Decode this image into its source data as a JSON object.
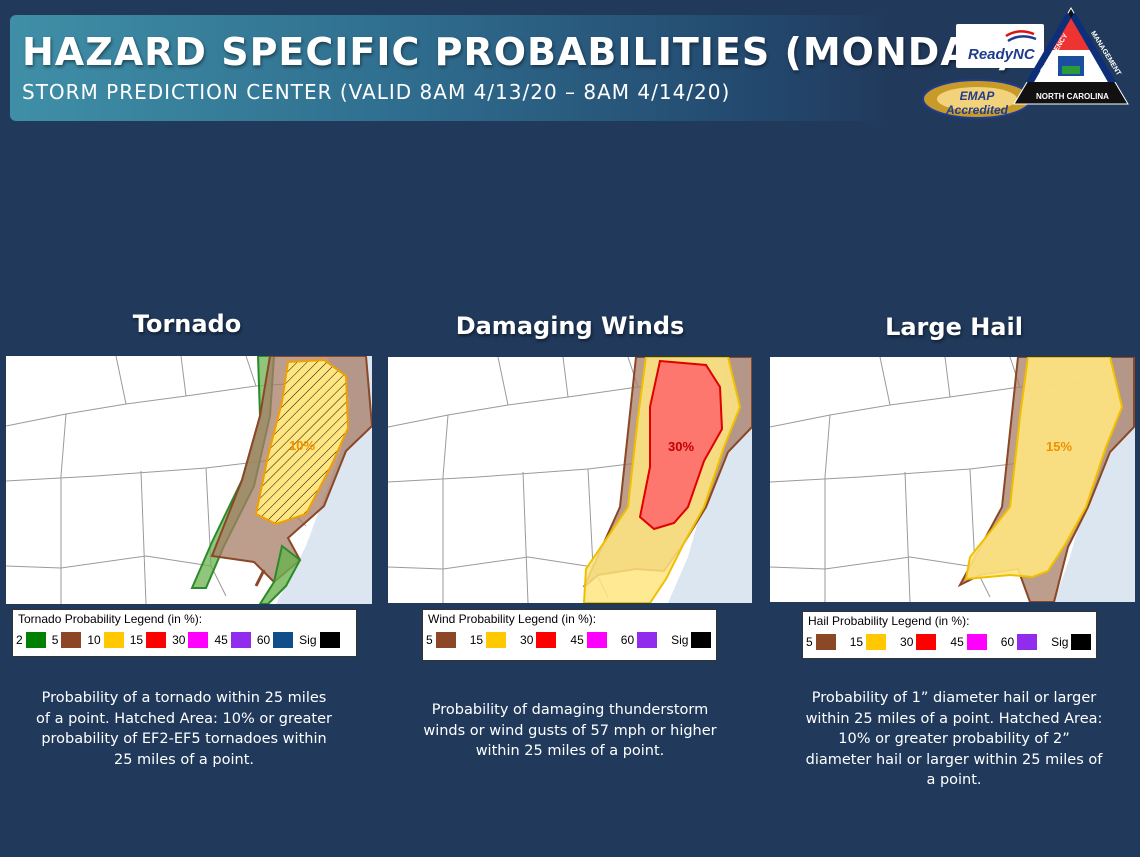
{
  "header": {
    "title": "HAZARD SPECIFIC PROBABILITIES (MONDAY)",
    "subtitle": "STORM PREDICTION CENTER (VALID 8AM 4/13/20 – 8AM 4/14/20)"
  },
  "logos": {
    "ready": "ReadyNC",
    "emap": "EMAP Accredited",
    "ncem_emergency": "EMERGENCY",
    "ncem_management": "MANAGEMENT",
    "ncem_state": "NORTH CAROLINA"
  },
  "panels": [
    {
      "title": "Tornado",
      "prob_label": "10%",
      "legend": {
        "title": "Tornado Probability Legend (in %):",
        "items": [
          {
            "label": "2",
            "color": "#008000"
          },
          {
            "label": "5",
            "color": "#8b4726"
          },
          {
            "label": "10",
            "color": "#ffc800"
          },
          {
            "label": "15",
            "color": "#ff0000"
          },
          {
            "label": "30",
            "color": "#ff00ff"
          },
          {
            "label": "45",
            "color": "#912cee"
          },
          {
            "label": "60",
            "color": "#104e8b"
          },
          {
            "label": "Sig",
            "color": "#000000"
          }
        ]
      },
      "description": "Probability of a tornado within 25 miles of a point. Hatched Area: 10% or greater probability of EF2-EF5 tornadoes within 25 miles of a point."
    },
    {
      "title": "Damaging Winds",
      "prob_label": "30%",
      "legend": {
        "title": "Wind Probability Legend (in %):",
        "items": [
          {
            "label": "5",
            "color": "#8b4726"
          },
          {
            "label": "15",
            "color": "#ffc800"
          },
          {
            "label": "30",
            "color": "#ff0000"
          },
          {
            "label": "45",
            "color": "#ff00ff"
          },
          {
            "label": "60",
            "color": "#912cee"
          },
          {
            "label": "Sig",
            "color": "#000000"
          }
        ]
      },
      "description": "Probability of damaging thunderstorm winds or wind gusts of 57 mph or higher within 25 miles of a point."
    },
    {
      "title": "Large Hail",
      "prob_label": "15%",
      "legend": {
        "title": "Hail Probability Legend (in %):",
        "items": [
          {
            "label": "5",
            "color": "#8b4726"
          },
          {
            "label": "15",
            "color": "#ffc800"
          },
          {
            "label": "30",
            "color": "#ff0000"
          },
          {
            "label": "45",
            "color": "#ff00ff"
          },
          {
            "label": "60",
            "color": "#912cee"
          },
          {
            "label": "Sig",
            "color": "#000000"
          }
        ]
      },
      "description": "Probability of 1” diameter hail or larger within 25 miles of a point. Hatched Area: 10% or greater probability of 2” diameter hail or larger within 25 miles of a point."
    }
  ]
}
